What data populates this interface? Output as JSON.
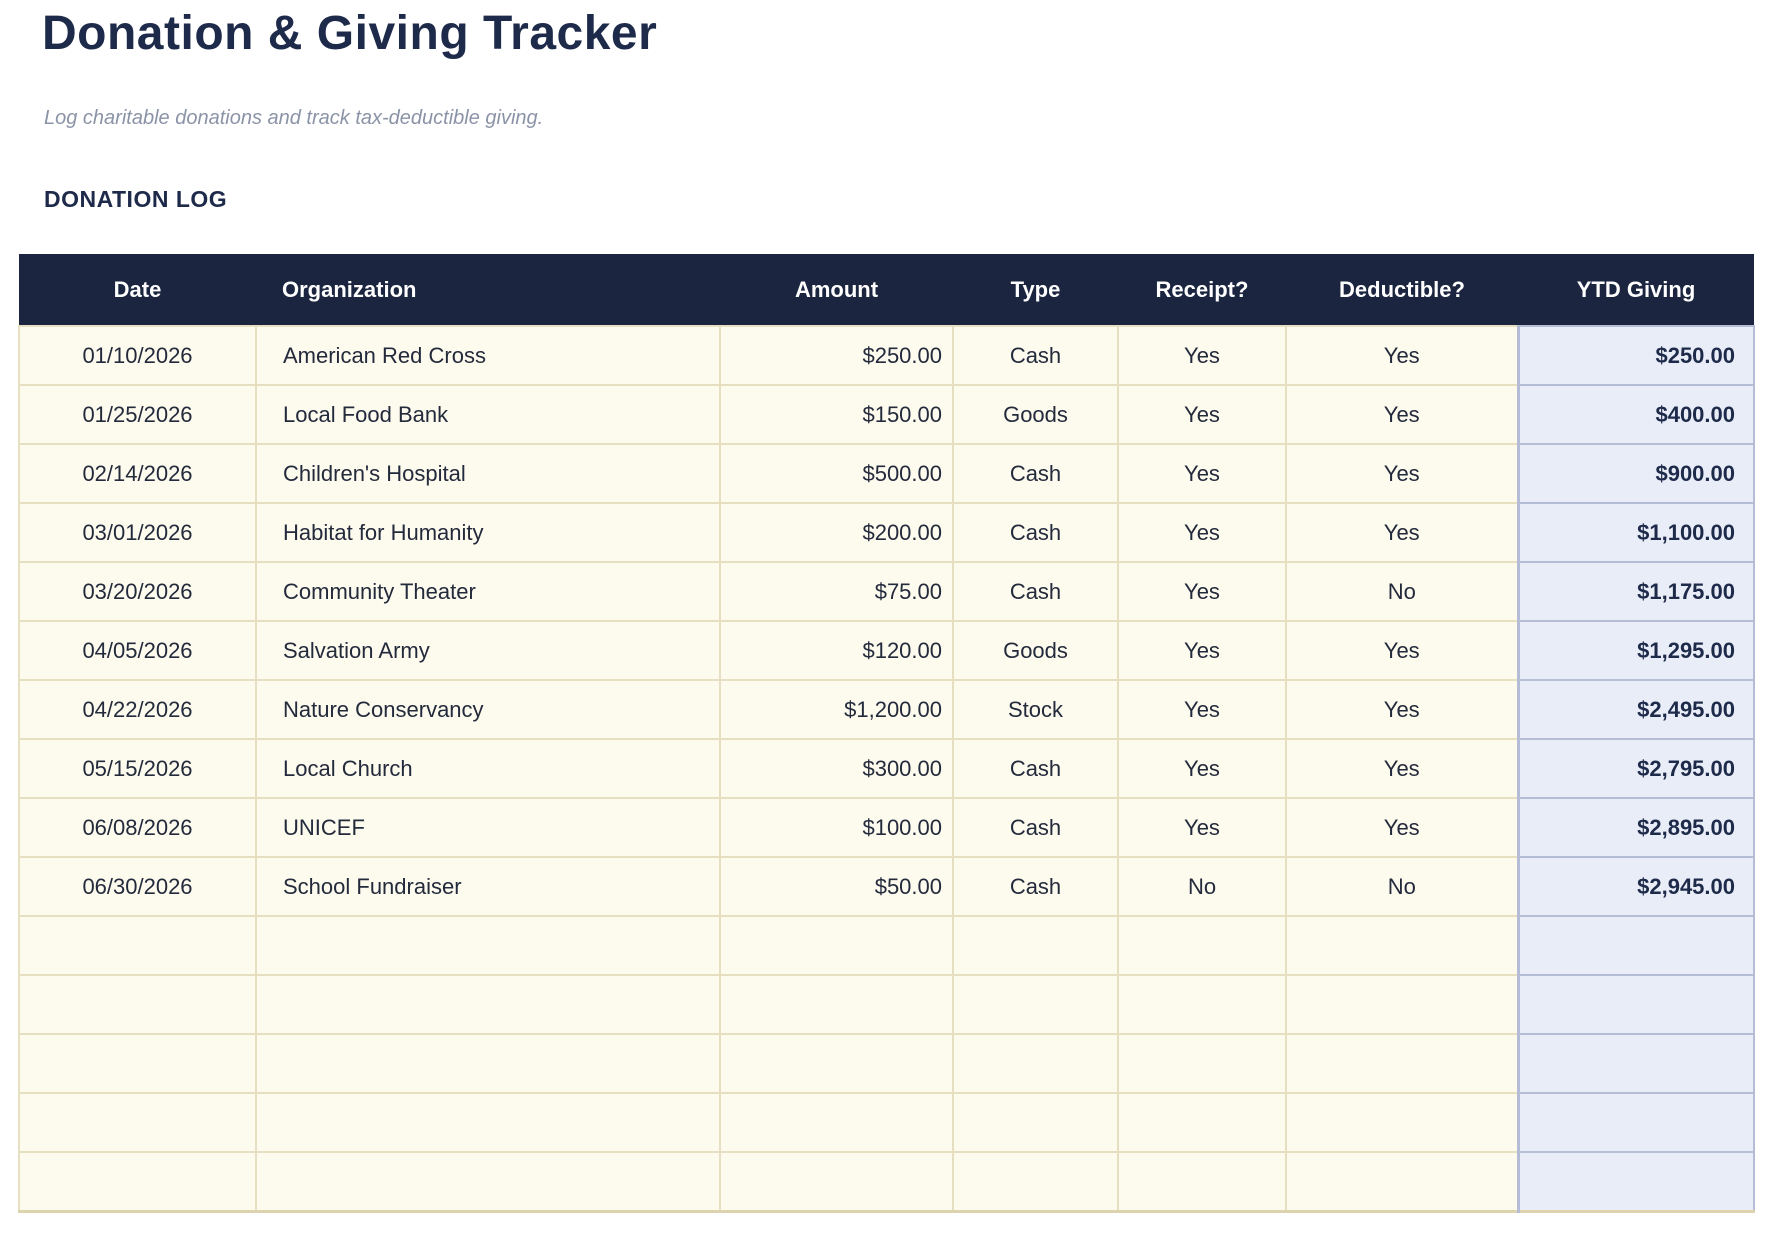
{
  "page": {
    "title": "Donation & Giving Tracker",
    "subtitle": "Log charitable donations and track tax-deductible giving.",
    "section_title": "DONATION LOG"
  },
  "table": {
    "columns": [
      {
        "key": "date",
        "label": "Date"
      },
      {
        "key": "organization",
        "label": "Organization"
      },
      {
        "key": "amount",
        "label": "Amount"
      },
      {
        "key": "type",
        "label": "Type"
      },
      {
        "key": "receipt",
        "label": "Receipt?"
      },
      {
        "key": "deductible",
        "label": "Deductible?"
      },
      {
        "key": "ytd",
        "label": "YTD Giving"
      }
    ],
    "rows": [
      {
        "date": "01/10/2026",
        "organization": "American Red Cross",
        "amount": "$250.00",
        "type": "Cash",
        "receipt": "Yes",
        "deductible": "Yes",
        "ytd": "$250.00"
      },
      {
        "date": "01/25/2026",
        "organization": "Local Food Bank",
        "amount": "$150.00",
        "type": "Goods",
        "receipt": "Yes",
        "deductible": "Yes",
        "ytd": "$400.00"
      },
      {
        "date": "02/14/2026",
        "organization": "Children's Hospital",
        "amount": "$500.00",
        "type": "Cash",
        "receipt": "Yes",
        "deductible": "Yes",
        "ytd": "$900.00"
      },
      {
        "date": "03/01/2026",
        "organization": "Habitat for Humanity",
        "amount": "$200.00",
        "type": "Cash",
        "receipt": "Yes",
        "deductible": "Yes",
        "ytd": "$1,100.00"
      },
      {
        "date": "03/20/2026",
        "organization": "Community Theater",
        "amount": "$75.00",
        "type": "Cash",
        "receipt": "Yes",
        "deductible": "No",
        "ytd": "$1,175.00"
      },
      {
        "date": "04/05/2026",
        "organization": "Salvation Army",
        "amount": "$120.00",
        "type": "Goods",
        "receipt": "Yes",
        "deductible": "Yes",
        "ytd": "$1,295.00"
      },
      {
        "date": "04/22/2026",
        "organization": "Nature Conservancy",
        "amount": "$1,200.00",
        "type": "Stock",
        "receipt": "Yes",
        "deductible": "Yes",
        "ytd": "$2,495.00"
      },
      {
        "date": "05/15/2026",
        "organization": "Local Church",
        "amount": "$300.00",
        "type": "Cash",
        "receipt": "Yes",
        "deductible": "Yes",
        "ytd": "$2,795.00"
      },
      {
        "date": "06/08/2026",
        "organization": "UNICEF",
        "amount": "$100.00",
        "type": "Cash",
        "receipt": "Yes",
        "deductible": "Yes",
        "ytd": "$2,895.00"
      },
      {
        "date": "06/30/2026",
        "organization": "School Fundraiser",
        "amount": "$50.00",
        "type": "Cash",
        "receipt": "No",
        "deductible": "No",
        "ytd": "$2,945.00"
      }
    ],
    "empty_row_count": 5
  },
  "colors": {
    "navy_text": "#1e2a4a",
    "header_bg": "#1b2540",
    "header_text": "#ffffff",
    "row_bg": "#fdfaee",
    "row_border": "#e7dfc2",
    "outer_border": "#ddd3ae",
    "ytd_bg": "#e9edf8",
    "ytd_border": "#b4bcd6",
    "body_text": "#232a3b",
    "subtitle_text": "#8b93a7"
  }
}
